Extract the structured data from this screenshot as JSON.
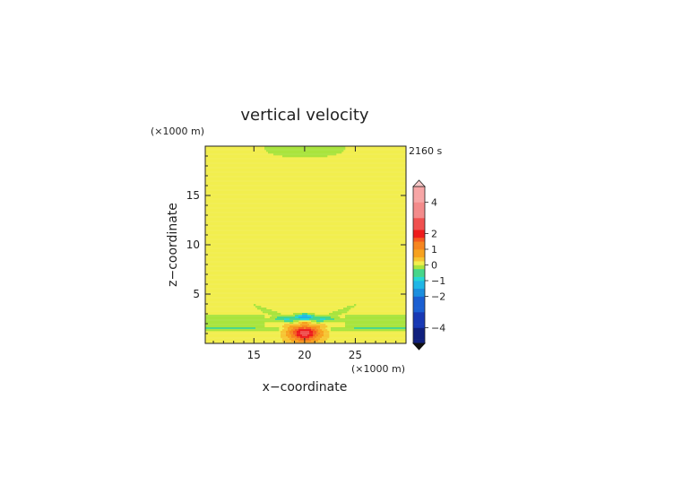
{
  "chart_data": {
    "type": "heatmap",
    "title": "vertical velocity",
    "time_label": "2160 s",
    "xlabel": "x−coordinate",
    "ylabel": "z−coordinate",
    "x_unit": "(×1000 m)",
    "z_unit": "(×1000 m)",
    "xlim": [
      10.2,
      30.0
    ],
    "zlim": [
      0.0,
      20.0
    ],
    "x_ticks": [
      15,
      20,
      25
    ],
    "z_ticks": [
      5,
      10,
      15
    ],
    "colorbar": {
      "range": [
        -5,
        5
      ],
      "labels": [
        4,
        2,
        1,
        0,
        -1,
        -2,
        -4
      ],
      "label_text": [
        "4",
        "2",
        "1",
        "0",
        "−1",
        "−2",
        "−4"
      ],
      "extend": "both"
    },
    "field_description": {
      "background_value": 0.2,
      "features": [
        {
          "kind": "updraft",
          "x": 20.0,
          "z": 1.1,
          "peak": 2.5
        },
        {
          "kind": "downdraft",
          "x": 20.0,
          "z": 2.7,
          "peak": -0.9
        },
        {
          "kind": "downdraft band",
          "z": 2.3,
          "peak": -0.3
        },
        {
          "kind": "downdraft cap",
          "x": 20.0,
          "z": 19.8,
          "peak": -0.3
        }
      ]
    }
  }
}
